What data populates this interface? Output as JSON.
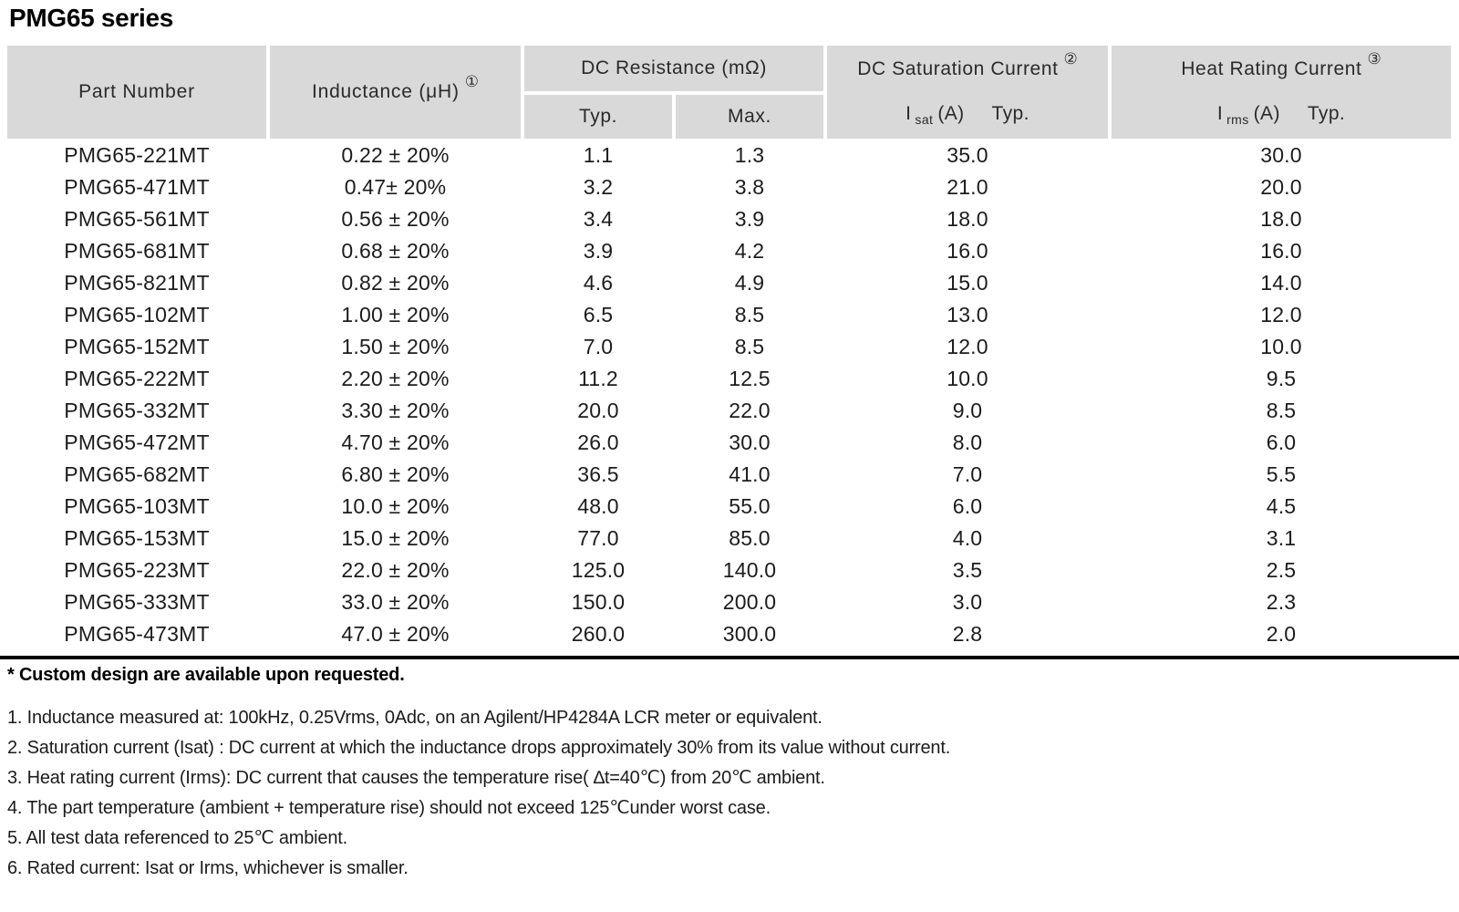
{
  "page": {
    "title": "PMG65 series"
  },
  "colors": {
    "header_bg": "#d9d9d9",
    "rule": "#000000",
    "text": "#1a1a1a",
    "background": "#ffffff"
  },
  "table": {
    "header": {
      "part_number": "Part Number",
      "inductance": "Inductance (μH)",
      "inductance_ref": "①",
      "dc_resistance": "DC Resistance (mΩ)",
      "typ": "Typ.",
      "max": "Max.",
      "dc_saturation": "DC Saturation Current",
      "dc_saturation_ref": "②",
      "isat": {
        "symbol": "I",
        "subscript": "sat",
        "unit": "(A)",
        "qualifier": "Typ."
      },
      "heat_rating": "Heat Rating Current",
      "heat_rating_ref": "③",
      "irms": {
        "symbol": "I",
        "subscript": "rms",
        "unit": "(A)",
        "qualifier": "Typ."
      }
    },
    "rows": [
      [
        "PMG65-221MT",
        "0.22 ± 20%",
        "1.1",
        "1.3",
        "35.0",
        "30.0"
      ],
      [
        "PMG65-471MT",
        "0.47± 20%",
        "3.2",
        "3.8",
        "21.0",
        "20.0"
      ],
      [
        "PMG65-561MT",
        "0.56 ± 20%",
        "3.4",
        "3.9",
        "18.0",
        "18.0"
      ],
      [
        "PMG65-681MT",
        "0.68 ± 20%",
        "3.9",
        "4.2",
        "16.0",
        "16.0"
      ],
      [
        "PMG65-821MT",
        "0.82 ± 20%",
        "4.6",
        "4.9",
        "15.0",
        "14.0"
      ],
      [
        "PMG65-102MT",
        "1.00 ± 20%",
        "6.5",
        "8.5",
        "13.0",
        "12.0"
      ],
      [
        "PMG65-152MT",
        "1.50 ± 20%",
        "7.0",
        "8.5",
        "12.0",
        "10.0"
      ],
      [
        "PMG65-222MT",
        "2.20 ± 20%",
        "11.2",
        "12.5",
        "10.0",
        "9.5"
      ],
      [
        "PMG65-332MT",
        "3.30 ± 20%",
        "20.0",
        "22.0",
        "9.0",
        "8.5"
      ],
      [
        "PMG65-472MT",
        "4.70 ± 20%",
        "26.0",
        "30.0",
        "8.0",
        "6.0"
      ],
      [
        "PMG65-682MT",
        "6.80 ± 20%",
        "36.5",
        "41.0",
        "7.0",
        "5.5"
      ],
      [
        "PMG65-103MT",
        "10.0 ± 20%",
        "48.0",
        "55.0",
        "6.0",
        "4.5"
      ],
      [
        "PMG65-153MT",
        "15.0 ± 20%",
        "77.0",
        "85.0",
        "4.0",
        "3.1"
      ],
      [
        "PMG65-223MT",
        "22.0 ± 20%",
        "125.0",
        "140.0",
        "3.5",
        "2.5"
      ],
      [
        "PMG65-333MT",
        "33.0 ± 20%",
        "150.0",
        "200.0",
        "3.0",
        "2.3"
      ],
      [
        "PMG65-473MT",
        "47.0 ± 20%",
        "260.0",
        "300.0",
        "2.8",
        "2.0"
      ]
    ],
    "cell_names": [
      "part-number-cell",
      "inductance-cell",
      "dcr-typ-cell",
      "dcr-max-cell",
      "isat-cell",
      "irms-cell"
    ]
  },
  "notes": {
    "custom": "* Custom design are available upon requested.",
    "items": [
      "1. Inductance measured at: 100kHz, 0.25Vrms, 0Adc, on an Agilent/HP4284A LCR meter or equivalent.",
      "2. Saturation current (Isat) : DC current at which the inductance drops approximately 30% from its value without current.",
      "3. Heat rating current (Irms): DC current that causes the temperature rise( ∆t=40℃) from 20℃ ambient.",
      "4. The part temperature (ambient + temperature rise) should not exceed 125℃under worst case.",
      "5. All test data referenced to 25℃ ambient.",
      "6. Rated current: Isat or Irms, whichever is smaller."
    ]
  }
}
